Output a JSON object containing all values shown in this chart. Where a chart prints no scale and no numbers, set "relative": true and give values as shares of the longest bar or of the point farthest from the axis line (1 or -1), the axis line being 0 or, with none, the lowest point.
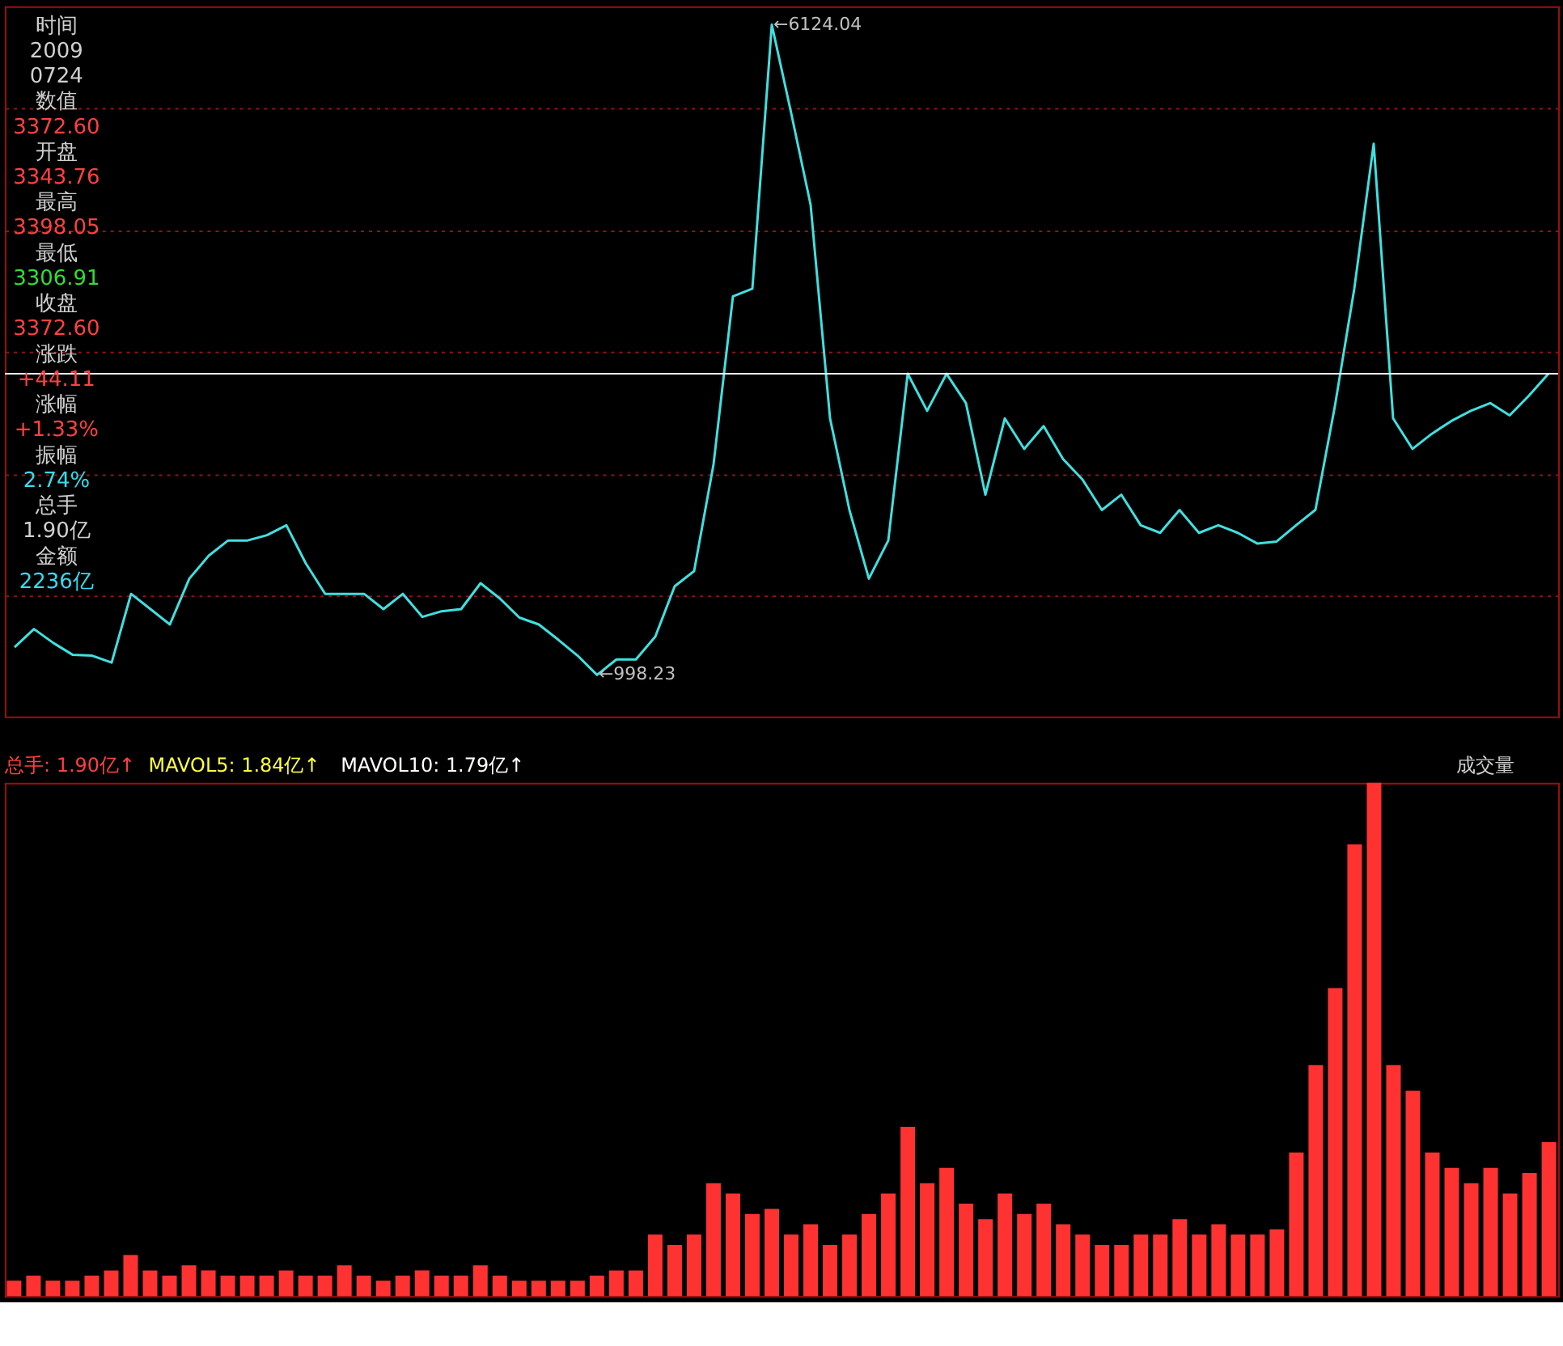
{
  "chart_data": [
    {
      "type": "line",
      "tick_labels": false,
      "grid": "y",
      "marker": "none",
      "line_style": "solid",
      "ylim": [
        670,
        6270
      ],
      "yticks": [
        {
          "value": 1625,
          "label": null
        },
        {
          "value": 2585,
          "label": null
        },
        {
          "value": 3545,
          "label": null
        },
        {
          "value": 4505,
          "label": null
        },
        {
          "value": 5465,
          "label": null
        }
      ],
      "categories": [
        null,
        null,
        null,
        null,
        null,
        null,
        null,
        null,
        null,
        null,
        null,
        null,
        null,
        null,
        null,
        null,
        null,
        null,
        null,
        null,
        null,
        null,
        null,
        null,
        null,
        null,
        null,
        null,
        null,
        null,
        null,
        null,
        null,
        null,
        null,
        null,
        null,
        null,
        null,
        null,
        null,
        null,
        null,
        null,
        null,
        null,
        null,
        null,
        null,
        null,
        null,
        null,
        null,
        null,
        null,
        null,
        null,
        null,
        null,
        null,
        null,
        null,
        null,
        null,
        null,
        null,
        null,
        null,
        null,
        null,
        null,
        null,
        null,
        null,
        null,
        null,
        null,
        null,
        null,
        null
      ],
      "series": [
        {
          "color": "#40e0e0",
          "values": [
            1216,
            1360,
            1250,
            1156,
            1150,
            1095,
            1637,
            1517,
            1396,
            1757,
            1938,
            2058,
            2058,
            2100,
            2178,
            1877,
            1637,
            1637,
            1637,
            1517,
            1637,
            1456,
            1500,
            1517,
            1721,
            1600,
            1450,
            1396,
            1276,
            1150,
            998.23,
            1120,
            1120,
            1300,
            1697,
            1817,
            2659,
            3983,
            4043,
            6124.04,
            5426,
            4704,
            3020,
            2298,
            1757,
            2058,
            3372.6,
            3080,
            3372,
            3141,
            2419,
            3020,
            2780,
            2960,
            2700,
            2539,
            2298,
            2419,
            2178,
            2118,
            2298,
            2118,
            2178,
            2118,
            2034,
            2050,
            2178,
            2300,
            3116,
            4043,
            5186,
            3020,
            2780,
            2900,
            3000,
            3080,
            3141,
            3044,
            3201,
            3372
          ],
          "value_labels": [
            null,
            null,
            null,
            null,
            null,
            null,
            null,
            null,
            null,
            null,
            null,
            null,
            null,
            null,
            null,
            null,
            null,
            null,
            null,
            null,
            null,
            null,
            null,
            null,
            null,
            null,
            null,
            null,
            null,
            null,
            "←998.23",
            null,
            null,
            null,
            null,
            null,
            null,
            null,
            null,
            "←6124.04",
            null,
            null,
            null,
            null,
            null,
            null,
            null,
            null,
            null,
            null,
            null,
            null,
            null,
            null,
            null,
            null,
            null,
            null,
            null,
            null,
            null,
            null,
            null,
            null,
            null,
            null,
            null,
            null,
            null,
            null,
            null,
            null,
            null,
            null,
            null,
            null,
            null,
            null,
            null,
            null
          ]
        }
      ],
      "ref_lines": [
        {
          "axis": "y",
          "value": 3372.6,
          "label": null,
          "color": "#ffffff"
        }
      ],
      "annotations": [
        "时间",
        "2009",
        "0724",
        "数值",
        "3372.60",
        "开盘",
        "3343.76",
        "最高",
        "3398.05",
        "最低",
        "3306.91",
        "收盘",
        "3372.60",
        "涨跌",
        "+44.11",
        "涨幅",
        "+1.33%",
        "振幅",
        "2.74%",
        "总手",
        "1.90亿",
        "金额",
        "2236亿"
      ]
    },
    {
      "type": "bar",
      "relative": true,
      "tick_labels": false,
      "categories": [
        null,
        null,
        null,
        null,
        null,
        null,
        null,
        null,
        null,
        null,
        null,
        null,
        null,
        null,
        null,
        null,
        null,
        null,
        null,
        null,
        null,
        null,
        null,
        null,
        null,
        null,
        null,
        null,
        null,
        null,
        null,
        null,
        null,
        null,
        null,
        null,
        null,
        null,
        null,
        null,
        null,
        null,
        null,
        null,
        null,
        null,
        null,
        null,
        null,
        null,
        null,
        null,
        null,
        null,
        null,
        null,
        null,
        null,
        null,
        null,
        null,
        null,
        null,
        null,
        null,
        null,
        null,
        null,
        null,
        null,
        null,
        null,
        null,
        null,
        null,
        null,
        null,
        null,
        null,
        null
      ],
      "series": [
        {
          "color": "#ff3232",
          "values": [
            0.03,
            0.04,
            0.03,
            0.03,
            0.04,
            0.05,
            0.08,
            0.05,
            0.04,
            0.06,
            0.05,
            0.04,
            0.04,
            0.04,
            0.05,
            0.04,
            0.04,
            0.06,
            0.04,
            0.03,
            0.04,
            0.05,
            0.04,
            0.04,
            0.06,
            0.04,
            0.03,
            0.03,
            0.03,
            0.03,
            0.04,
            0.05,
            0.05,
            0.12,
            0.1,
            0.12,
            0.22,
            0.2,
            0.16,
            0.17,
            0.12,
            0.14,
            0.1,
            0.12,
            0.16,
            0.2,
            0.33,
            0.22,
            0.25,
            0.18,
            0.15,
            0.2,
            0.16,
            0.18,
            0.14,
            0.12,
            0.1,
            0.1,
            0.12,
            0.12,
            0.15,
            0.12,
            0.14,
            0.12,
            0.12,
            0.13,
            0.28,
            0.45,
            0.6,
            0.88,
            1,
            0.45,
            0.4,
            0.28,
            0.25,
            0.22,
            0.25,
            0.2,
            0.24,
            0.3
          ]
        }
      ],
      "annotations": [
        "总手: 1.90亿↑",
        "MAVOL5: 1.84亿↑",
        "MAVOL10: 1.79亿↑",
        "成交量"
      ]
    }
  ]
}
